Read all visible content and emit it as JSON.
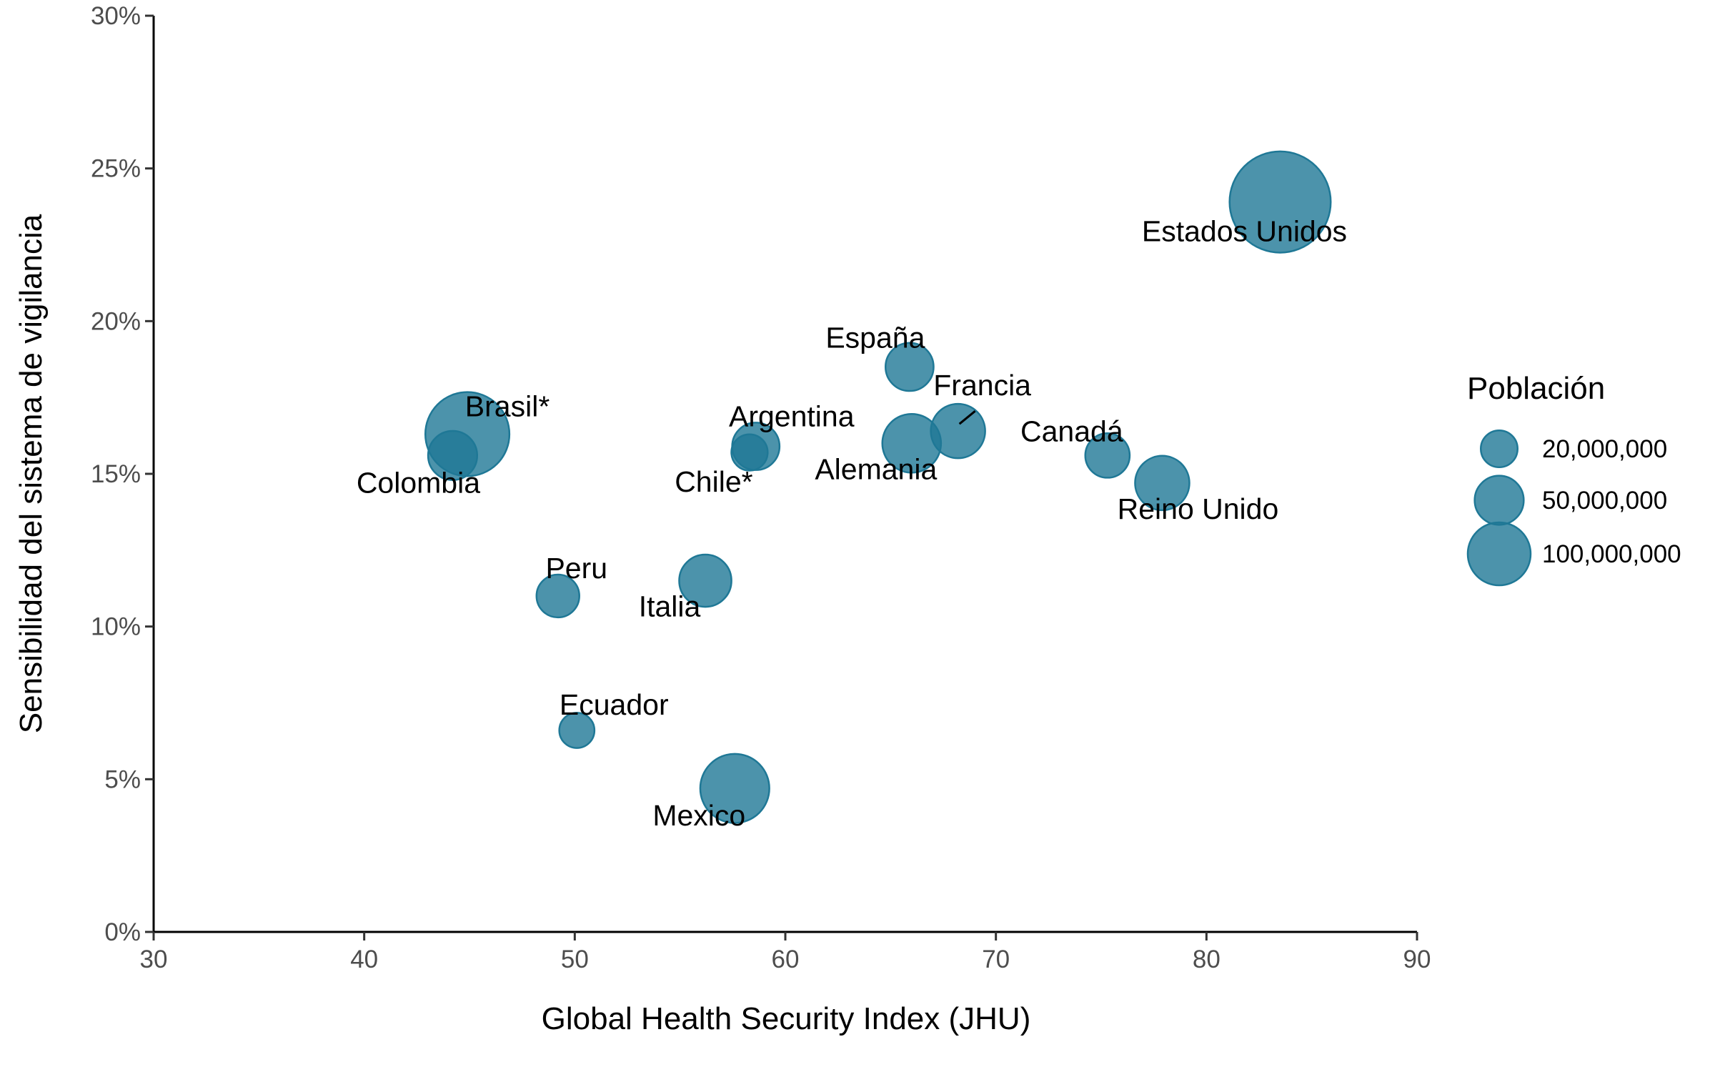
{
  "chart_data": {
    "type": "scatter",
    "xlabel": "Global Health Security Index (JHU)",
    "ylabel": "Sensibilidad del sistema de vigilancia",
    "xlim": [
      30,
      90
    ],
    "ylim": [
      0,
      30
    ],
    "x_ticks": [
      30,
      40,
      50,
      60,
      70,
      80,
      90
    ],
    "y_ticks": [
      0,
      5,
      10,
      15,
      20,
      25,
      30
    ],
    "y_tick_labels": [
      "0%",
      "5%",
      "10%",
      "15%",
      "20%",
      "25%",
      "30%"
    ],
    "grid": false,
    "point_color": "#1F7896",
    "size_variable": "Población",
    "legend": {
      "title": "Población",
      "placement": "right",
      "entries": [
        {
          "label": "20,000,000",
          "value": 20000000
        },
        {
          "label": "50,000,000",
          "value": 50000000
        },
        {
          "label": "100,000,000",
          "value": 100000000
        }
      ]
    },
    "points": [
      {
        "label": "Estados Unidos",
        "x": 83.5,
        "y": 23.9,
        "size": 328000000
      },
      {
        "label": "España",
        "x": 65.9,
        "y": 18.5,
        "size": 47000000
      },
      {
        "label": "Francia",
        "x": 68.2,
        "y": 16.4,
        "size": 67000000
      },
      {
        "label": "Canadá",
        "x": 75.3,
        "y": 15.6,
        "size": 37000000
      },
      {
        "label": "Reino Unido",
        "x": 77.9,
        "y": 14.7,
        "size": 67000000
      },
      {
        "label": "Brasil*",
        "x": 44.9,
        "y": 16.3,
        "size": 210000000
      },
      {
        "label": "Colombia",
        "x": 44.2,
        "y": 15.6,
        "size": 50000000
      },
      {
        "label": "Argentina",
        "x": 58.6,
        "y": 15.9,
        "size": 45000000
      },
      {
        "label": "Chile*",
        "x": 58.3,
        "y": 15.7,
        "size": 19000000
      },
      {
        "label": "Alemania",
        "x": 66.0,
        "y": 16.0,
        "size": 83000000
      },
      {
        "label": "Peru",
        "x": 49.2,
        "y": 11.0,
        "size": 33000000
      },
      {
        "label": "Italia",
        "x": 56.2,
        "y": 11.5,
        "size": 60000000
      },
      {
        "label": "Ecuador",
        "x": 50.1,
        "y": 6.6,
        "size": 17000000
      },
      {
        "label": "Mexico",
        "x": 57.6,
        "y": 4.7,
        "size": 128000000
      }
    ]
  }
}
